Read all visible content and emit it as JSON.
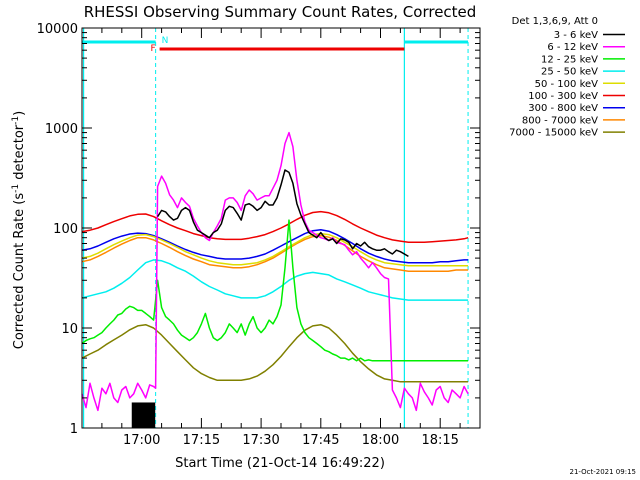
{
  "chart_data": {
    "type": "line",
    "title": "RHESSI Observing Summary Count Rates, Corrected",
    "xlabel": "Start Time (21-Oct-14 16:49:22)",
    "ylabel_main": "Corrected Count Rate (s",
    "ylabel_sup": "-1",
    "ylabel_mid": " detector",
    "ylabel_end": ")",
    "y_scale": "log",
    "ylim": [
      1,
      10000
    ],
    "y_ticks": [
      {
        "value": 1,
        "label": "1"
      },
      {
        "value": 10,
        "label": "10"
      },
      {
        "value": 100,
        "label": "100"
      },
      {
        "value": 1000,
        "label": "1000"
      },
      {
        "value": 10000,
        "label": "10000"
      }
    ],
    "x_range_min": [
      -5,
      95
    ],
    "x_ticks": [
      {
        "t": 10,
        "label": "17:00"
      },
      {
        "t": 25,
        "label": "17:15"
      },
      {
        "t": 40,
        "label": "17:30"
      },
      {
        "t": 55,
        "label": "17:45"
      },
      {
        "t": 70,
        "label": "18:00"
      },
      {
        "t": 85,
        "label": "18:15"
      }
    ],
    "legend_header": "Det 1,3,6,9, Att 0",
    "legend_position": "top-right",
    "series": [
      {
        "name": "3 - 6 keV",
        "color": "#000000",
        "x": [
          14,
          15,
          16,
          17,
          18,
          19,
          20,
          21,
          22,
          23,
          24,
          25,
          26,
          27,
          28,
          29,
          30,
          31,
          32,
          33,
          34,
          35,
          36,
          37,
          38,
          39,
          40,
          41,
          42,
          43,
          44,
          45,
          46,
          47,
          48,
          49,
          50,
          51,
          52,
          53,
          54,
          55,
          56,
          57,
          58,
          59,
          60,
          61,
          62,
          63,
          64,
          65,
          66,
          67,
          68,
          69,
          70,
          71,
          72,
          73,
          74,
          75,
          76,
          77
        ],
        "y": [
          130,
          150,
          145,
          130,
          120,
          125,
          150,
          160,
          150,
          115,
          95,
          90,
          85,
          80,
          90,
          95,
          110,
          150,
          165,
          160,
          140,
          120,
          170,
          175,
          165,
          150,
          160,
          185,
          170,
          170,
          200,
          270,
          380,
          360,
          280,
          175,
          135,
          110,
          90,
          85,
          80,
          90,
          80,
          75,
          78,
          70,
          78,
          76,
          72,
          62,
          70,
          66,
          72,
          65,
          62,
          60,
          60,
          62,
          58,
          55,
          60,
          58,
          55,
          52
        ]
      },
      {
        "name": "6 - 12 keV",
        "color": "#ff00ff",
        "x": [
          -5,
          -4,
          -3,
          -2,
          -1,
          0,
          1,
          2,
          3,
          4,
          5,
          6,
          7,
          8,
          9,
          10,
          11,
          12,
          13,
          13.5,
          14,
          15,
          16,
          17,
          18,
          19,
          20,
          21,
          22,
          23,
          24,
          25,
          26,
          27,
          28,
          29,
          30,
          31,
          32,
          33,
          34,
          35,
          36,
          37,
          38,
          39,
          40,
          41,
          42,
          43,
          44,
          45,
          46,
          47,
          48,
          49,
          50,
          51,
          52,
          53,
          54,
          55,
          56,
          57,
          58,
          59,
          60,
          61,
          62,
          63,
          64,
          65,
          66,
          67,
          68,
          69,
          70,
          71,
          72,
          73,
          74,
          75,
          76,
          77,
          78,
          79,
          80,
          81,
          82,
          83,
          84,
          85,
          86,
          87,
          88,
          89,
          90,
          91,
          92
        ],
        "y": [
          2.2,
          1.6,
          2.8,
          2,
          1.5,
          2.5,
          2.2,
          2.8,
          2,
          1.8,
          2.4,
          2.6,
          2,
          2.2,
          2.8,
          2.4,
          2,
          2.7,
          2.6,
          2.5,
          260,
          330,
          280,
          215,
          190,
          160,
          200,
          180,
          165,
          125,
          105,
          90,
          80,
          75,
          90,
          105,
          125,
          190,
          200,
          200,
          180,
          150,
          210,
          240,
          220,
          190,
          200,
          210,
          210,
          250,
          300,
          420,
          700,
          900,
          650,
          300,
          170,
          115,
          95,
          90,
          85,
          80,
          78,
          75,
          80,
          72,
          70,
          68,
          60,
          54,
          58,
          50,
          45,
          40,
          45,
          40,
          35,
          32,
          31,
          2.4,
          2,
          1.6,
          2.5,
          2.2,
          2,
          1.5,
          2.8,
          2.3,
          2,
          1.7,
          2.4,
          2.6,
          2,
          1.8,
          2.4,
          2.2,
          2,
          2.6,
          2.2
        ]
      },
      {
        "name": "12 - 25 keV",
        "color": "#00ee00",
        "x": [
          -5,
          -4,
          -3,
          -2,
          -1,
          0,
          1,
          2,
          3,
          4,
          5,
          6,
          7,
          8,
          9,
          10,
          11,
          12,
          13,
          14,
          15,
          16,
          17,
          18,
          19,
          20,
          21,
          22,
          23,
          24,
          25,
          26,
          27,
          28,
          29,
          30,
          31,
          32,
          33,
          34,
          35,
          36,
          37,
          38,
          39,
          40,
          41,
          42,
          43,
          44,
          45,
          46,
          47,
          48,
          49,
          50,
          51,
          52,
          53,
          54,
          55,
          56,
          57,
          58,
          59,
          60,
          61,
          62,
          63,
          64,
          65,
          66,
          67,
          68,
          69,
          70,
          71,
          72,
          73,
          74,
          75,
          76,
          77,
          78,
          79,
          80,
          81,
          82,
          83,
          84,
          85,
          86,
          87,
          88,
          89,
          90,
          91,
          92
        ],
        "y": [
          7,
          7.5,
          7.8,
          8,
          8.5,
          9,
          10,
          11,
          12,
          13.5,
          14,
          15.5,
          16.5,
          16,
          15,
          15,
          14,
          13,
          12,
          30,
          16,
          13,
          12,
          11,
          9.5,
          8.5,
          8,
          7.5,
          8,
          9,
          11,
          14,
          10,
          8,
          7.5,
          8,
          9,
          11,
          10,
          9,
          11,
          8.5,
          11,
          13,
          10,
          9,
          10,
          12,
          11,
          13,
          17,
          40,
          120,
          40,
          16,
          11,
          9,
          8,
          7.5,
          7,
          6.5,
          6,
          5.8,
          5.5,
          5.3,
          5,
          5,
          4.8,
          5,
          4.7,
          5,
          4.7,
          4.8,
          4.7,
          4.7,
          4.7,
          4.7,
          4.7,
          4.7,
          4.7,
          4.7,
          4.7,
          4.7,
          4.7,
          4.7,
          4.7,
          4.7,
          4.7,
          4.7,
          4.7,
          4.7,
          4.7,
          4.7,
          4.7,
          4.7,
          4.7,
          4.7,
          4.7
        ]
      },
      {
        "name": "25 - 50 keV",
        "color": "#00eeee",
        "x": [
          -5,
          -3,
          -1,
          1,
          3,
          5,
          7,
          9,
          11,
          13,
          15,
          17,
          19,
          21,
          23,
          25,
          27,
          29,
          31,
          33,
          35,
          37,
          39,
          41,
          43,
          45,
          47,
          49,
          51,
          53,
          55,
          57,
          59,
          61,
          63,
          65,
          67,
          69,
          71,
          73,
          75,
          77,
          79,
          81,
          83,
          85,
          87,
          89,
          91,
          92
        ],
        "y": [
          20,
          21,
          22,
          23,
          25,
          28,
          32,
          38,
          45,
          48,
          47,
          44,
          40,
          37,
          33,
          29,
          26,
          24,
          22,
          21,
          20,
          20,
          20,
          21,
          23,
          26,
          30,
          33,
          35,
          36,
          35,
          34,
          31,
          29,
          27,
          25,
          23,
          22,
          21,
          20,
          19.5,
          19,
          19,
          19,
          19,
          19,
          19,
          19,
          19,
          19
        ]
      },
      {
        "name": "50 - 100 keV",
        "color": "#dddd00",
        "x": [
          -5,
          -3,
          -1,
          1,
          3,
          5,
          7,
          9,
          11,
          13,
          15,
          17,
          19,
          21,
          23,
          25,
          27,
          29,
          31,
          33,
          35,
          37,
          39,
          41,
          43,
          45,
          47,
          49,
          51,
          53,
          55,
          57,
          59,
          61,
          63,
          65,
          67,
          69,
          71,
          73,
          75,
          77,
          79,
          81,
          83,
          85,
          87,
          89,
          91,
          92
        ],
        "y": [
          50,
          52,
          56,
          62,
          68,
          74,
          80,
          85,
          86,
          82,
          76,
          70,
          64,
          58,
          54,
          50,
          47,
          45,
          44,
          43,
          43,
          44,
          45,
          48,
          52,
          58,
          65,
          72,
          80,
          86,
          88,
          86,
          80,
          72,
          65,
          58,
          52,
          48,
          45,
          44,
          43,
          42,
          42,
          42,
          42,
          42,
          42,
          42,
          42,
          42
        ]
      },
      {
        "name": "100 - 300 keV",
        "color": "#ee0000",
        "x": [
          -5,
          -3,
          -1,
          1,
          3,
          5,
          7,
          9,
          11,
          13,
          15,
          17,
          19,
          21,
          23,
          25,
          27,
          29,
          31,
          33,
          35,
          37,
          39,
          41,
          43,
          45,
          47,
          49,
          51,
          53,
          55,
          57,
          59,
          61,
          63,
          65,
          67,
          69,
          71,
          73,
          75,
          77,
          79,
          81,
          83,
          85,
          87,
          89,
          91,
          92
        ],
        "y": [
          92,
          95,
          100,
          108,
          116,
          124,
          132,
          137,
          138,
          130,
          118,
          108,
          100,
          94,
          88,
          84,
          80,
          78,
          77,
          77,
          77,
          79,
          82,
          86,
          92,
          100,
          110,
          122,
          134,
          143,
          146,
          142,
          133,
          122,
          110,
          100,
          92,
          85,
          80,
          76,
          74,
          72,
          72,
          72,
          73,
          74,
          75,
          76,
          78,
          80
        ]
      },
      {
        "name": "300 - 800 keV",
        "color": "#0000ee",
        "x": [
          -5,
          -3,
          -1,
          1,
          3,
          5,
          7,
          9,
          11,
          13,
          15,
          17,
          19,
          21,
          23,
          25,
          27,
          29,
          31,
          33,
          35,
          37,
          39,
          41,
          43,
          45,
          47,
          49,
          51,
          53,
          55,
          57,
          59,
          61,
          63,
          65,
          67,
          69,
          71,
          73,
          75,
          77,
          79,
          81,
          83,
          85,
          87,
          89,
          91,
          92
        ],
        "y": [
          60,
          62,
          66,
          72,
          78,
          83,
          87,
          89,
          88,
          84,
          78,
          72,
          66,
          61,
          57,
          54,
          52,
          50,
          49,
          49,
          49,
          50,
          52,
          55,
          60,
          66,
          73,
          80,
          88,
          94,
          96,
          93,
          86,
          78,
          70,
          62,
          56,
          52,
          49,
          47,
          46,
          45,
          45,
          45,
          45,
          46,
          46,
          47,
          48,
          48
        ]
      },
      {
        "name": "800 - 7000 keV",
        "color": "#ff8800",
        "x": [
          -5,
          -3,
          -1,
          1,
          3,
          5,
          7,
          9,
          11,
          13,
          15,
          17,
          19,
          21,
          23,
          25,
          27,
          29,
          31,
          33,
          35,
          37,
          39,
          41,
          43,
          45,
          47,
          49,
          51,
          53,
          55,
          57,
          59,
          61,
          63,
          65,
          67,
          69,
          71,
          73,
          75,
          77,
          79,
          81,
          83,
          85,
          87,
          89,
          91,
          92
        ],
        "y": [
          46,
          48,
          52,
          57,
          63,
          69,
          75,
          80,
          80,
          76,
          70,
          64,
          58,
          53,
          49,
          46,
          43,
          42,
          41,
          40,
          40,
          41,
          43,
          46,
          50,
          56,
          63,
          70,
          77,
          82,
          84,
          81,
          75,
          67,
          59,
          52,
          47,
          43,
          40,
          39,
          38,
          37,
          37,
          37,
          37,
          37,
          37,
          38,
          38,
          38
        ]
      },
      {
        "name": "7000 - 15000 keV",
        "color": "#808000",
        "x": [
          -5,
          -3,
          -1,
          1,
          3,
          5,
          7,
          9,
          11,
          13,
          15,
          17,
          19,
          21,
          23,
          25,
          27,
          29,
          31,
          33,
          35,
          37,
          39,
          41,
          43,
          45,
          47,
          49,
          51,
          53,
          55,
          57,
          59,
          61,
          63,
          65,
          67,
          69,
          71,
          73,
          75,
          77,
          79,
          81,
          83,
          85,
          87,
          89,
          91,
          92
        ],
        "y": [
          5,
          5.5,
          6,
          6.8,
          7.6,
          8.5,
          9.6,
          10.5,
          10.8,
          10,
          8.5,
          7,
          5.8,
          4.8,
          4,
          3.5,
          3.2,
          3,
          3,
          3,
          3,
          3.1,
          3.3,
          3.7,
          4.3,
          5.2,
          6.5,
          8,
          9.5,
          10.5,
          10.8,
          10,
          8.5,
          7,
          5.6,
          4.6,
          3.9,
          3.4,
          3.1,
          3,
          2.9,
          2.9,
          2.9,
          2.9,
          2.9,
          2.9,
          2.9,
          2.9,
          2.9,
          2.9
        ]
      }
    ],
    "annotations": {
      "flare_flag_label": "F",
      "night_flag_label": "N"
    }
  },
  "footer": {
    "timestamp": "21-Oct-2021 09:15"
  }
}
